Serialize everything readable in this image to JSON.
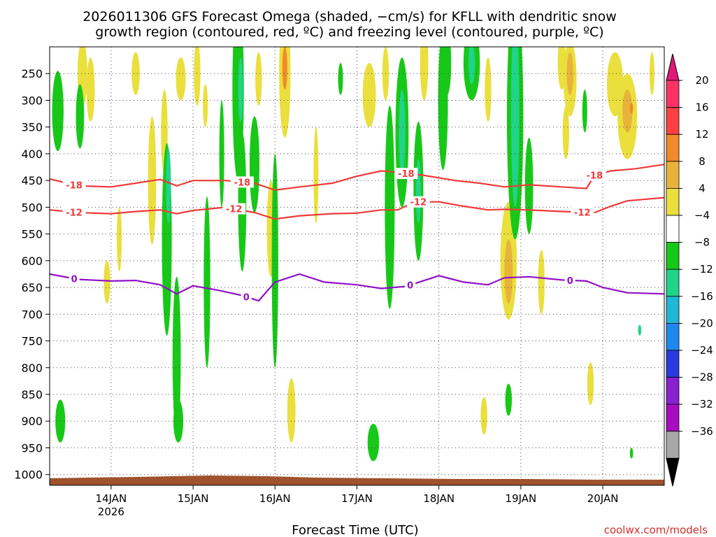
{
  "chart_data": {
    "type": "heatmap",
    "title_line1": "2026011306 GFS Forecast Omega (shaded, −cm/s) for KFLL with dendritic snow",
    "title_line2": "growth region (contoured, red, ºC) and freezing level (contoured, purple, ºC)",
    "xlabel": "Forecast Time (UTC)",
    "ylabel": "",
    "credit": "coolwx.com/models",
    "x_ticks": [
      {
        "day": 14,
        "label": "14JAN",
        "sub": "2026"
      },
      {
        "day": 15,
        "label": "15JAN",
        "sub": ""
      },
      {
        "day": 16,
        "label": "16JAN",
        "sub": ""
      },
      {
        "day": 17,
        "label": "17JAN",
        "sub": ""
      },
      {
        "day": 18,
        "label": "18JAN",
        "sub": ""
      },
      {
        "day": 19,
        "label": "19JAN",
        "sub": ""
      },
      {
        "day": 20,
        "label": "20JAN",
        "sub": ""
      }
    ],
    "xlim_day": [
      13.25,
      20.75
    ],
    "y_ticks": [
      250,
      300,
      350,
      400,
      450,
      500,
      550,
      600,
      650,
      700,
      750,
      800,
      850,
      900,
      950,
      1000
    ],
    "ylim_hpa": [
      200,
      1020
    ],
    "colorbar": {
      "labels": [
        "20",
        "16",
        "12",
        "8",
        "4",
        "−4",
        "−8",
        "−12",
        "−16",
        "−20",
        "−24",
        "−28",
        "−32",
        "−36"
      ],
      "colors": [
        "#ff3366",
        "#ff4040",
        "#f08a2a",
        "#e8b33a",
        "#eadf3c",
        "#ffffff",
        "#18c818",
        "#20d48a",
        "#20b8d4",
        "#1e88f0",
        "#2a3ae0",
        "#8a20d0",
        "#a80cc0",
        "#a8a8a8"
      ],
      "top_arrow_color": "#e01878",
      "bottom_arrow_color": "#000000"
    },
    "omega_blobs": [
      {
        "day": 13.35,
        "hpa": 320,
        "dd": 0.07,
        "dp": 75,
        "color": "#18c818"
      },
      {
        "day": 13.38,
        "hpa": 900,
        "dd": 0.06,
        "dp": 40,
        "color": "#18c818"
      },
      {
        "day": 13.65,
        "hpa": 250,
        "dd": 0.06,
        "dp": 60,
        "color": "#eadf3c"
      },
      {
        "day": 13.75,
        "hpa": 280,
        "dd": 0.05,
        "dp": 60,
        "color": "#eadf3c"
      },
      {
        "day": 13.62,
        "hpa": 330,
        "dd": 0.05,
        "dp": 60,
        "color": "#18c818"
      },
      {
        "day": 13.95,
        "hpa": 640,
        "dd": 0.04,
        "dp": 40,
        "color": "#eadf3c"
      },
      {
        "day": 14.1,
        "hpa": 560,
        "dd": 0.03,
        "dp": 60,
        "color": "#eadf3c"
      },
      {
        "day": 14.3,
        "hpa": 250,
        "dd": 0.05,
        "dp": 40,
        "color": "#eadf3c"
      },
      {
        "day": 14.5,
        "hpa": 450,
        "dd": 0.05,
        "dp": 120,
        "color": "#eadf3c"
      },
      {
        "day": 14.65,
        "hpa": 360,
        "dd": 0.04,
        "dp": 80,
        "color": "#eadf3c"
      },
      {
        "day": 14.68,
        "hpa": 560,
        "dd": 0.06,
        "dp": 180,
        "color": "#18c818"
      },
      {
        "day": 14.7,
        "hpa": 460,
        "dd": 0.03,
        "dp": 70,
        "color": "#20d48a"
      },
      {
        "day": 14.8,
        "hpa": 780,
        "dd": 0.05,
        "dp": 150,
        "color": "#18c818"
      },
      {
        "day": 14.85,
        "hpa": 260,
        "dd": 0.06,
        "dp": 40,
        "color": "#eadf3c"
      },
      {
        "day": 14.82,
        "hpa": 900,
        "dd": 0.06,
        "dp": 40,
        "color": "#18c818"
      },
      {
        "day": 15.05,
        "hpa": 250,
        "dd": 0.04,
        "dp": 60,
        "color": "#eadf3c"
      },
      {
        "day": 15.15,
        "hpa": 310,
        "dd": 0.03,
        "dp": 40,
        "color": "#eadf3c"
      },
      {
        "day": 15.17,
        "hpa": 640,
        "dd": 0.04,
        "dp": 160,
        "color": "#18c818"
      },
      {
        "day": 15.35,
        "hpa": 400,
        "dd": 0.03,
        "dp": 100,
        "color": "#18c818"
      },
      {
        "day": 15.55,
        "hpa": 280,
        "dd": 0.07,
        "dp": 170,
        "color": "#18c818"
      },
      {
        "day": 15.6,
        "hpa": 490,
        "dd": 0.05,
        "dp": 130,
        "color": "#18c818"
      },
      {
        "day": 15.58,
        "hpa": 280,
        "dd": 0.03,
        "dp": 60,
        "color": "#20d48a"
      },
      {
        "day": 15.75,
        "hpa": 420,
        "dd": 0.06,
        "dp": 90,
        "color": "#18c818"
      },
      {
        "day": 15.8,
        "hpa": 260,
        "dd": 0.04,
        "dp": 50,
        "color": "#eadf3c"
      },
      {
        "day": 15.95,
        "hpa": 540,
        "dd": 0.05,
        "dp": 90,
        "color": "#eadf3c"
      },
      {
        "day": 16.0,
        "hpa": 600,
        "dd": 0.04,
        "dp": 200,
        "color": "#18c818"
      },
      {
        "day": 16.12,
        "hpa": 250,
        "dd": 0.07,
        "dp": 120,
        "color": "#eadf3c"
      },
      {
        "day": 16.12,
        "hpa": 240,
        "dd": 0.03,
        "dp": 40,
        "color": "#f08a2a"
      },
      {
        "day": 16.2,
        "hpa": 880,
        "dd": 0.05,
        "dp": 60,
        "color": "#eadf3c"
      },
      {
        "day": 16.5,
        "hpa": 440,
        "dd": 0.03,
        "dp": 90,
        "color": "#eadf3c"
      },
      {
        "day": 16.8,
        "hpa": 260,
        "dd": 0.03,
        "dp": 30,
        "color": "#18c818"
      },
      {
        "day": 17.15,
        "hpa": 290,
        "dd": 0.08,
        "dp": 60,
        "color": "#eadf3c"
      },
      {
        "day": 17.2,
        "hpa": 940,
        "dd": 0.07,
        "dp": 35,
        "color": "#18c818"
      },
      {
        "day": 17.35,
        "hpa": 250,
        "dd": 0.04,
        "dp": 50,
        "color": "#eadf3c"
      },
      {
        "day": 17.4,
        "hpa": 500,
        "dd": 0.06,
        "dp": 190,
        "color": "#18c818"
      },
      {
        "day": 17.55,
        "hpa": 360,
        "dd": 0.08,
        "dp": 140,
        "color": "#18c818"
      },
      {
        "day": 17.55,
        "hpa": 360,
        "dd": 0.04,
        "dp": 80,
        "color": "#20d48a"
      },
      {
        "day": 17.75,
        "hpa": 470,
        "dd": 0.06,
        "dp": 130,
        "color": "#18c818"
      },
      {
        "day": 17.75,
        "hpa": 470,
        "dd": 0.03,
        "dp": 60,
        "color": "#20d48a"
      },
      {
        "day": 17.82,
        "hpa": 230,
        "dd": 0.05,
        "dp": 70,
        "color": "#eadf3c"
      },
      {
        "day": 18.05,
        "hpa": 300,
        "dd": 0.06,
        "dp": 130,
        "color": "#18c818"
      },
      {
        "day": 18.1,
        "hpa": 230,
        "dd": 0.05,
        "dp": 60,
        "color": "#18c818"
      },
      {
        "day": 18.4,
        "hpa": 230,
        "dd": 0.1,
        "dp": 70,
        "color": "#18c818"
      },
      {
        "day": 18.4,
        "hpa": 230,
        "dd": 0.04,
        "dp": 40,
        "color": "#20d48a"
      },
      {
        "day": 18.6,
        "hpa": 280,
        "dd": 0.04,
        "dp": 60,
        "color": "#eadf3c"
      },
      {
        "day": 18.55,
        "hpa": 890,
        "dd": 0.04,
        "dp": 35,
        "color": "#eadf3c"
      },
      {
        "day": 18.85,
        "hpa": 600,
        "dd": 0.1,
        "dp": 110,
        "color": "#eadf3c"
      },
      {
        "day": 18.85,
        "hpa": 620,
        "dd": 0.05,
        "dp": 60,
        "color": "#e8b33a"
      },
      {
        "day": 18.85,
        "hpa": 860,
        "dd": 0.04,
        "dp": 30,
        "color": "#18c818"
      },
      {
        "day": 18.93,
        "hpa": 330,
        "dd": 0.1,
        "dp": 230,
        "color": "#18c818"
      },
      {
        "day": 18.93,
        "hpa": 320,
        "dd": 0.05,
        "dp": 180,
        "color": "#20d48a"
      },
      {
        "day": 19.1,
        "hpa": 460,
        "dd": 0.05,
        "dp": 90,
        "color": "#18c818"
      },
      {
        "day": 19.25,
        "hpa": 640,
        "dd": 0.04,
        "dp": 60,
        "color": "#eadf3c"
      },
      {
        "day": 19.5,
        "hpa": 230,
        "dd": 0.05,
        "dp": 50,
        "color": "#eadf3c"
      },
      {
        "day": 19.6,
        "hpa": 260,
        "dd": 0.08,
        "dp": 70,
        "color": "#eadf3c"
      },
      {
        "day": 19.6,
        "hpa": 250,
        "dd": 0.04,
        "dp": 40,
        "color": "#e8b33a"
      },
      {
        "day": 19.55,
        "hpa": 360,
        "dd": 0.04,
        "dp": 50,
        "color": "#eadf3c"
      },
      {
        "day": 19.78,
        "hpa": 320,
        "dd": 0.03,
        "dp": 40,
        "color": "#18c818"
      },
      {
        "day": 19.85,
        "hpa": 830,
        "dd": 0.04,
        "dp": 40,
        "color": "#eadf3c"
      },
      {
        "day": 20.15,
        "hpa": 270,
        "dd": 0.1,
        "dp": 60,
        "color": "#eadf3c"
      },
      {
        "day": 20.3,
        "hpa": 330,
        "dd": 0.12,
        "dp": 80,
        "color": "#eadf3c"
      },
      {
        "day": 20.3,
        "hpa": 320,
        "dd": 0.06,
        "dp": 40,
        "color": "#e8b33a"
      },
      {
        "day": 20.35,
        "hpa": 315,
        "dd": 0.02,
        "dp": 10,
        "color": "#f08a2a"
      },
      {
        "day": 20.6,
        "hpa": 250,
        "dd": 0.03,
        "dp": 40,
        "color": "#eadf3c"
      },
      {
        "day": 20.45,
        "hpa": 730,
        "dd": 0.02,
        "dp": 10,
        "color": "#20d48a"
      },
      {
        "day": 20.35,
        "hpa": 960,
        "dd": 0.02,
        "dp": 10,
        "color": "#18c818"
      }
    ],
    "contours": [
      {
        "label": "-18",
        "color": "#ee3a3a",
        "label_days": [
          13.55,
          15.6,
          17.6,
          19.9
        ],
        "points": [
          [
            13.25,
            447
          ],
          [
            13.6,
            460
          ],
          [
            14.0,
            462
          ],
          [
            14.3,
            455
          ],
          [
            14.6,
            448
          ],
          [
            14.8,
            460
          ],
          [
            15.0,
            450
          ],
          [
            15.4,
            450
          ],
          [
            15.75,
            455
          ],
          [
            16.0,
            468
          ],
          [
            16.3,
            462
          ],
          [
            16.7,
            455
          ],
          [
            17.0,
            442
          ],
          [
            17.3,
            432
          ],
          [
            17.8,
            440
          ],
          [
            18.2,
            450
          ],
          [
            18.5,
            455
          ],
          [
            18.8,
            462
          ],
          [
            19.1,
            458
          ],
          [
            19.5,
            462
          ],
          [
            19.8,
            465
          ],
          [
            19.9,
            440
          ],
          [
            20.1,
            432
          ],
          [
            20.4,
            428
          ],
          [
            20.75,
            420
          ]
        ]
      },
      {
        "label": "-12",
        "color": "#ee3a3a",
        "label_days": [
          13.55,
          15.5,
          17.75,
          19.75
        ],
        "points": [
          [
            13.25,
            505
          ],
          [
            13.6,
            510
          ],
          [
            14.0,
            512
          ],
          [
            14.3,
            508
          ],
          [
            14.6,
            505
          ],
          [
            14.8,
            512
          ],
          [
            15.0,
            506
          ],
          [
            15.4,
            500
          ],
          [
            15.75,
            510
          ],
          [
            16.0,
            522
          ],
          [
            16.3,
            516
          ],
          [
            16.7,
            512
          ],
          [
            17.0,
            511
          ],
          [
            17.3,
            505
          ],
          [
            17.5,
            505
          ],
          [
            17.7,
            490
          ],
          [
            18.0,
            490
          ],
          [
            18.3,
            498
          ],
          [
            18.6,
            505
          ],
          [
            18.8,
            504
          ],
          [
            19.1,
            505
          ],
          [
            19.5,
            508
          ],
          [
            19.9,
            510
          ],
          [
            20.1,
            498
          ],
          [
            20.3,
            488
          ],
          [
            20.75,
            482
          ]
        ]
      },
      {
        "label": "0",
        "color": "#9010c8",
        "label_days": [
          13.55,
          15.65,
          17.65,
          19.6
        ],
        "points": [
          [
            13.25,
            625
          ],
          [
            13.6,
            635
          ],
          [
            14.0,
            638
          ],
          [
            14.3,
            637
          ],
          [
            14.6,
            645
          ],
          [
            14.8,
            662
          ],
          [
            15.0,
            647
          ],
          [
            15.3,
            655
          ],
          [
            15.6,
            665
          ],
          [
            15.8,
            675
          ],
          [
            16.0,
            640
          ],
          [
            16.3,
            625
          ],
          [
            16.6,
            640
          ],
          [
            17.0,
            645
          ],
          [
            17.3,
            652
          ],
          [
            17.6,
            648
          ],
          [
            18.0,
            628
          ],
          [
            18.3,
            640
          ],
          [
            18.6,
            645
          ],
          [
            18.8,
            632
          ],
          [
            19.1,
            630
          ],
          [
            19.5,
            636
          ],
          [
            19.8,
            638
          ],
          [
            20.0,
            650
          ],
          [
            20.3,
            660
          ],
          [
            20.75,
            662
          ]
        ]
      }
    ]
  }
}
